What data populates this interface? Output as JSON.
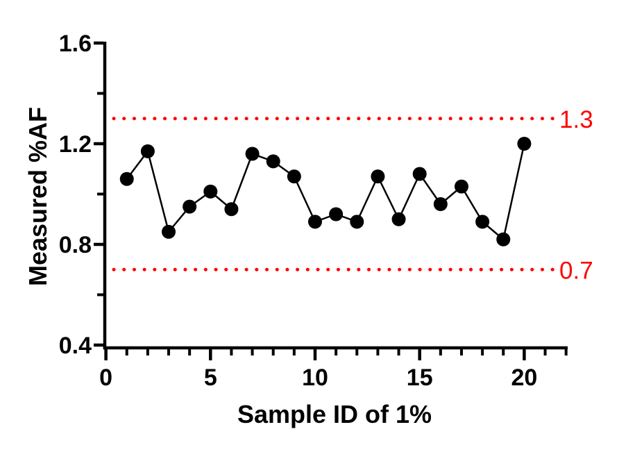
{
  "figure": {
    "background_color": "#ffffff",
    "axis_color": "#000000"
  },
  "chart_data": {
    "type": "line",
    "title": "",
    "xlabel": "Sample ID of 1%",
    "ylabel": "Measured %AF",
    "x": [
      1,
      2,
      3,
      4,
      5,
      6,
      7,
      8,
      9,
      10,
      11,
      12,
      13,
      14,
      15,
      16,
      17,
      18,
      19,
      20
    ],
    "values": [
      1.06,
      1.17,
      0.85,
      0.95,
      1.01,
      0.94,
      1.16,
      1.13,
      1.07,
      0.89,
      0.92,
      0.89,
      1.07,
      0.9,
      1.08,
      0.96,
      1.03,
      0.89,
      0.82,
      1.2
    ],
    "series_name": "Measured %AF",
    "series_color": "#000000",
    "marker": "filled-circle",
    "xlim": [
      0,
      22
    ],
    "ylim": [
      0.4,
      1.6
    ],
    "x_major_ticks": [
      0,
      5,
      10,
      15,
      20
    ],
    "x_tick_labels": [
      "0",
      "5",
      "10",
      "15",
      "20"
    ],
    "x_minor_tick_step": 1,
    "y_major_ticks": [
      0.4,
      0.8,
      1.2,
      1.6
    ],
    "y_tick_labels": [
      "0.4",
      "0.8",
      "1.2",
      "1.6"
    ],
    "y_minor_ticks": [
      0.6,
      1.0,
      1.4
    ],
    "grid": false,
    "legend": null,
    "reference_lines": [
      {
        "value": 1.3,
        "label": "1.3",
        "color": "#FF0000",
        "style": "dotted"
      },
      {
        "value": 0.7,
        "label": "0.7",
        "color": "#FF0000",
        "style": "dotted"
      }
    ]
  }
}
